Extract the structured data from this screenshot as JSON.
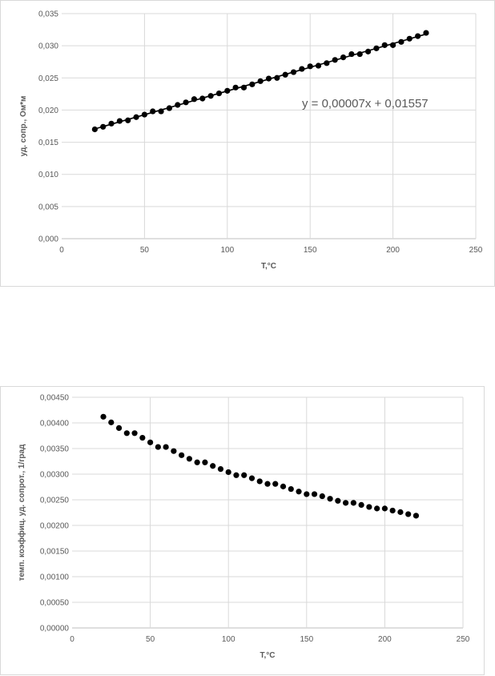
{
  "chart_data": [
    {
      "type": "scatter",
      "title": "",
      "xlabel": "T,°C",
      "ylabel": "уд. сопр., Ом*м",
      "xlim": [
        0,
        250
      ],
      "ylim": [
        0,
        0.035
      ],
      "x_ticks": [
        0,
        50,
        100,
        150,
        200,
        250
      ],
      "x_tick_labels": [
        "0",
        "50",
        "100",
        "150",
        "200",
        "250"
      ],
      "y_ticks": [
        0,
        0.005,
        0.01,
        0.015,
        0.02,
        0.025,
        0.03,
        0.035
      ],
      "y_tick_labels": [
        "0,000",
        "0,005",
        "0,010",
        "0,015",
        "0,020",
        "0,025",
        "0,030",
        "0,035"
      ],
      "grid": true,
      "trendline": true,
      "equation": "y = 0,00007x + 0,01557",
      "x": [
        20,
        25,
        30,
        35,
        40,
        45,
        50,
        55,
        60,
        65,
        70,
        75,
        80,
        85,
        90,
        95,
        100,
        105,
        110,
        115,
        120,
        125,
        130,
        135,
        140,
        145,
        150,
        155,
        160,
        165,
        170,
        175,
        180,
        185,
        190,
        195,
        200,
        205,
        210,
        215,
        220
      ],
      "y": [
        0.017,
        0.0174,
        0.0179,
        0.0183,
        0.0184,
        0.0189,
        0.0193,
        0.0198,
        0.0198,
        0.0203,
        0.0208,
        0.0212,
        0.0217,
        0.0218,
        0.0222,
        0.0226,
        0.023,
        0.0235,
        0.0235,
        0.024,
        0.0245,
        0.0249,
        0.025,
        0.0255,
        0.0259,
        0.0264,
        0.0268,
        0.0269,
        0.0273,
        0.0278,
        0.0282,
        0.0287,
        0.0287,
        0.0291,
        0.0296,
        0.0301,
        0.0301,
        0.0306,
        0.0311,
        0.0315,
        0.032
      ]
    },
    {
      "type": "scatter",
      "title": "",
      "xlabel": "T,°C",
      "ylabel": "темп. коэффиц. уд. сопрот., 1/град",
      "xlim": [
        0,
        250
      ],
      "ylim": [
        0,
        0.0045
      ],
      "x_ticks": [
        0,
        50,
        100,
        150,
        200,
        250
      ],
      "x_tick_labels": [
        "0",
        "50",
        "100",
        "150",
        "200",
        "250"
      ],
      "y_ticks": [
        0,
        0.0005,
        0.001,
        0.0015,
        0.002,
        0.0025,
        0.003,
        0.0035,
        0.004,
        0.0045
      ],
      "y_tick_labels": [
        "0,00000",
        "0,00050",
        "0,00100",
        "0,00150",
        "0,00200",
        "0,00250",
        "0,00300",
        "0,00350",
        "0,00400",
        "0,00450"
      ],
      "grid": true,
      "x": [
        20,
        25,
        30,
        35,
        40,
        45,
        50,
        55,
        60,
        65,
        70,
        75,
        80,
        85,
        90,
        95,
        100,
        105,
        110,
        115,
        120,
        125,
        130,
        135,
        140,
        145,
        150,
        155,
        160,
        165,
        170,
        175,
        180,
        185,
        190,
        195,
        200,
        205,
        210,
        215,
        220
      ],
      "y": [
        0.00412,
        0.00401,
        0.0039,
        0.0038,
        0.0038,
        0.00371,
        0.00362,
        0.00353,
        0.00353,
        0.00345,
        0.00337,
        0.0033,
        0.00323,
        0.00323,
        0.00316,
        0.0031,
        0.00304,
        0.00298,
        0.00298,
        0.00292,
        0.00286,
        0.00281,
        0.00281,
        0.00276,
        0.00271,
        0.00266,
        0.00261,
        0.00261,
        0.00257,
        0.00252,
        0.00248,
        0.00244,
        0.00244,
        0.0024,
        0.00236,
        0.00233,
        0.00233,
        0.00229,
        0.00226,
        0.00222,
        0.00219
      ]
    }
  ]
}
